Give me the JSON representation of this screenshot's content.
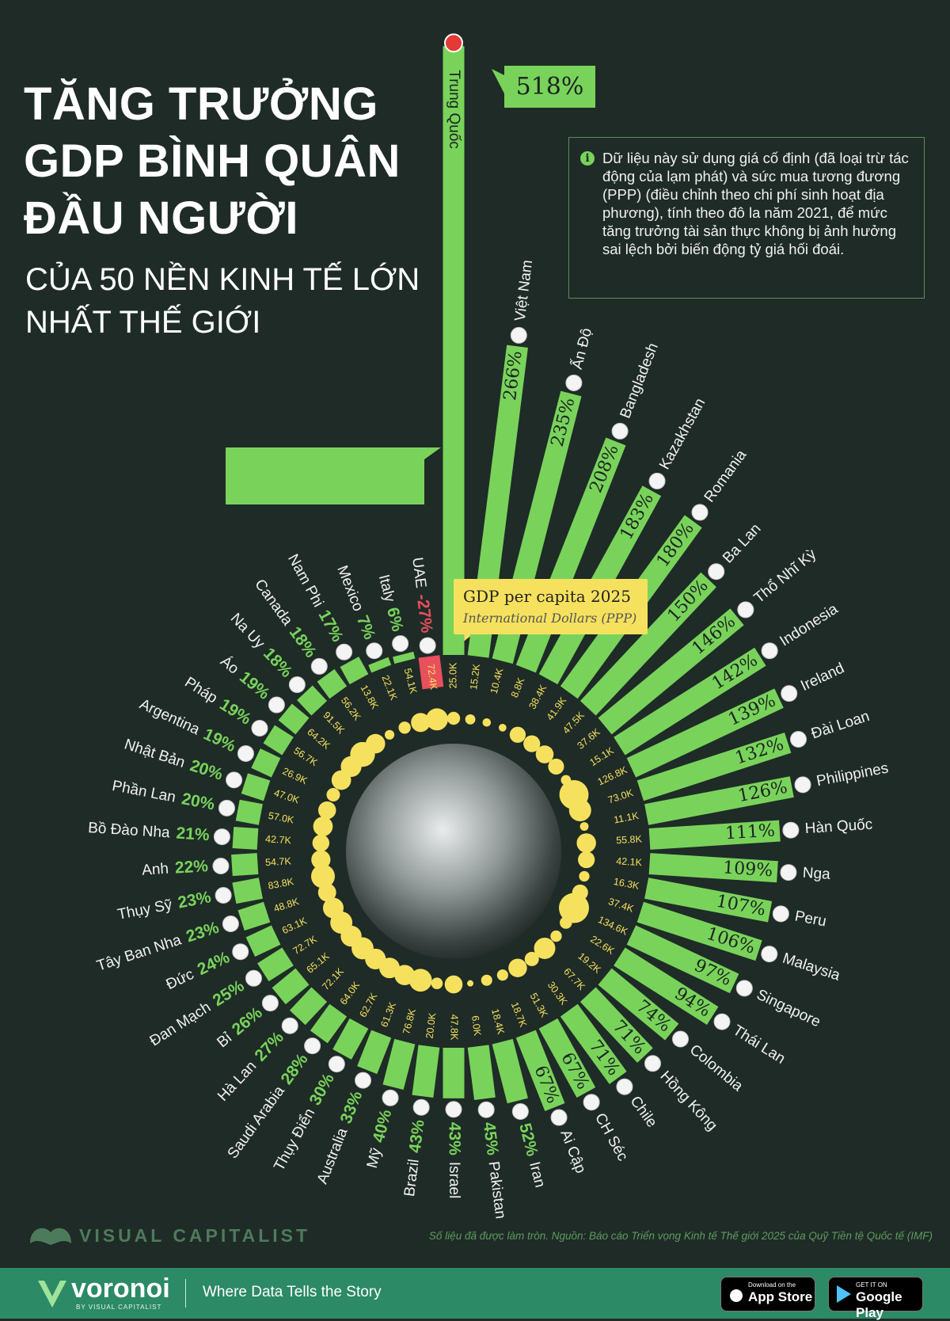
{
  "chart_data": {
    "type": "radial-bar",
    "title": "TĂNG TRƯỞNG GDP BÌNH QUÂN ĐẦU NGƯỜI",
    "subtitle": "CỦA 50 NỀN KINH TẾ LỚN NHẤT THẾ GIỚI",
    "note": "Dữ liệu này sử dụng giá cố định (đã loại trừ tác động của lạm phát) và sức mua tương đương (PPP) (điều chỉnh theo chi phí sinh hoạt địa phương), tính theo đô la năm 2021, để mức tăng trưởng tài sản thực không bị ảnh hưởng sai lệch bởi biến động tỷ giá hối đoái.",
    "legend": {
      "title": "GDP per capita 2025",
      "subtitle": "International Dollars (PPP)"
    },
    "source": "Số liệu đã được làm tròn. Nguồn: Báo cáo Triển vọng Kinh tế Thế giới 2025 của Quỹ Tiền tệ Quốc tế (IMF)",
    "color": "#79d35b",
    "negative_color": "#e8505b",
    "bubble_color": "#f5e15e",
    "categories": [
      "Trung Quốc",
      "Việt Nam",
      "Ấn Độ",
      "Bangladesh",
      "Kazakhstan",
      "Romania",
      "Ba Lan",
      "Thổ Nhĩ Kỳ",
      "Indonesia",
      "Ireland",
      "Đài Loan",
      "Philippines",
      "Hàn Quốc",
      "Nga",
      "Peru",
      "Malaysia",
      "Singapore",
      "Thái Lan",
      "Colombia",
      "Hồng Kông",
      "Chile",
      "CH Séc",
      "Ai Cập",
      "Iran",
      "Pakistan",
      "Israel",
      "Brazil",
      "Mỹ",
      "Australia",
      "Thụy Điển",
      "Saudi Arabia",
      "Hà Lan",
      "Bỉ",
      "Đan Mạch",
      "Đức",
      "Tây Ban Nha",
      "Thụy Sỹ",
      "Anh",
      "Bồ Đào Nha",
      "Phần Lan",
      "Nhật Bản",
      "Argentina",
      "Pháp",
      "Áo",
      "Na Uy",
      "Canada",
      "Nam Phi",
      "Mexico",
      "Italy",
      "UAE"
    ],
    "values": [
      518,
      266,
      235,
      208,
      183,
      180,
      150,
      146,
      142,
      139,
      132,
      126,
      111,
      109,
      107,
      106,
      97,
      94,
      74,
      71,
      71,
      67,
      67,
      52,
      45,
      43,
      43,
      40,
      33,
      30,
      28,
      27,
      26,
      25,
      24,
      23,
      23,
      22,
      21,
      20,
      20,
      19,
      19,
      19,
      18,
      18,
      17,
      7,
      6,
      -27
    ],
    "value_labels": [
      "518%",
      "266%",
      "235%",
      "208%",
      "183%",
      "180%",
      "150%",
      "146%",
      "142%",
      "139%",
      "132%",
      "126%",
      "111%",
      "109%",
      "107%",
      "106%",
      "97%",
      "94%",
      "74%",
      "71%",
      "71%",
      "67%",
      "67%",
      "52%",
      "45%",
      "43%",
      "43%",
      "40%",
      "33%",
      "30%",
      "28%",
      "27%",
      "26%",
      "25%",
      "24%",
      "23%",
      "23%",
      "22%",
      "21%",
      "20%",
      "20%",
      "19%",
      "19%",
      "19%",
      "18%",
      "18%",
      "17%",
      "7%",
      "6%",
      "-27%"
    ],
    "gdp_per_capita": {
      "values": [
        25000,
        15200,
        10400,
        8800,
        38400,
        41900,
        47500,
        37600,
        15100,
        126800,
        73000,
        11100,
        55800,
        42100,
        16300,
        37400,
        134600,
        22600,
        19200,
        67700,
        30300,
        51300,
        18700,
        18400,
        6000,
        47800,
        20000,
        76800,
        61300,
        62700,
        64000,
        72100,
        65100,
        72700,
        63100,
        48800,
        83800,
        54700,
        42700,
        57000,
        47000,
        26900,
        56700,
        64200,
        91500,
        56200,
        13800,
        22100,
        54100,
        72400
      ],
      "value_labels": [
        "25.0K",
        "15.2K",
        "10.4K",
        "8.8K",
        "38.4K",
        "41.9K",
        "47.5K",
        "37.6K",
        "15.1K",
        "126.8K",
        "73.0K",
        "11.1K",
        "55.8K",
        "42.1K",
        "16.3K",
        "37.4K",
        "134.6K",
        "22.6K",
        "19.2K",
        "67.7K",
        "30.3K",
        "51.3K",
        "18.7K",
        "18.4K",
        "6.0K",
        "47.8K",
        "20.0K",
        "76.8K",
        "61.3K",
        "62.7K",
        "64.0K",
        "72.1K",
        "65.1K",
        "72.7K",
        "63.1K",
        "48.8K",
        "83.8K",
        "54.7K",
        "42.7K",
        "57.0K",
        "47.0K",
        "26.9K",
        "56.7K",
        "64.2K",
        "91.5K",
        "56.2K",
        "13.8K",
        "22.1K",
        "54.1K",
        "72.4K"
      ]
    }
  },
  "brand": {
    "name": "VISUAL CAPITALIST"
  },
  "footer": {
    "logo": "voronoi",
    "by": "BY VISUAL CAPITALIST",
    "tagline": "Where Data Tells the Story",
    "app_store": {
      "small": "Download on the",
      "big": "App Store"
    },
    "google_play": {
      "small": "GET IT ON",
      "big": "Google Play"
    }
  }
}
